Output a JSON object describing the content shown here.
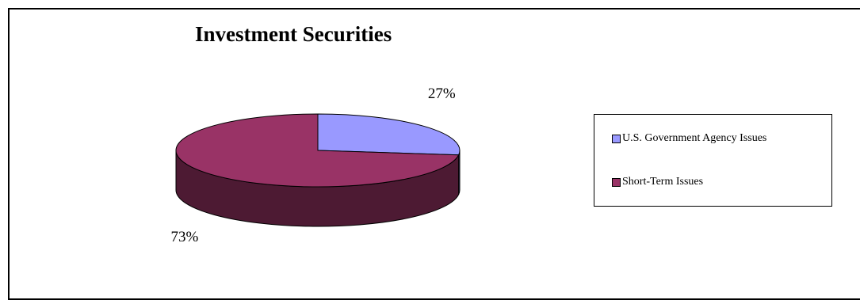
{
  "chart_data": {
    "type": "pie",
    "title": "Investment Securities",
    "categories": [
      "U.S. Government Agency Issues",
      "Short-Term Issues"
    ],
    "values": [
      27,
      73
    ],
    "value_labels": [
      "27%",
      "73%"
    ],
    "colors": [
      "#9999ff",
      "#993366"
    ],
    "side_colors": [
      "#4d4d80",
      "#4d1a33"
    ],
    "legend_position": "right",
    "style": "3d-pie"
  }
}
